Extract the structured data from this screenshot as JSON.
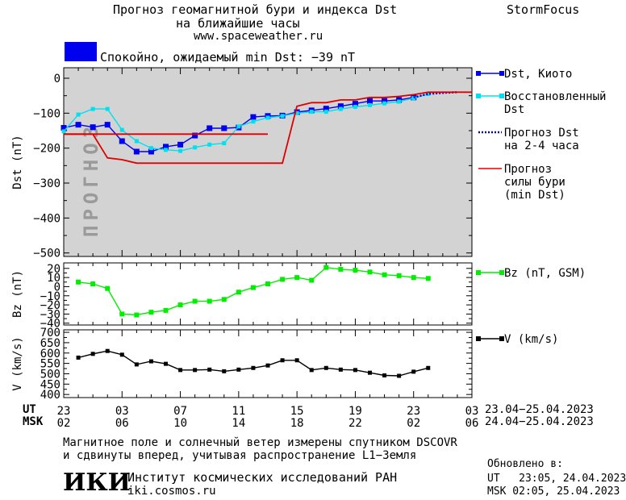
{
  "header": {
    "title_line1": "Прогноз геомагнитной бури и индекса Dst",
    "title_line2": "на ближайшие часы",
    "url": "www.spaceweather.ru",
    "brand": "StormFocus"
  },
  "status": {
    "text": "Спокойно, ожидаемый min Dst: −39 nT",
    "color": "#0000ee"
  },
  "colors": {
    "dst": "#0000ee",
    "restored": "#00e0ee",
    "forecast": "#0000cc",
    "storm": "#dd0000",
    "bz": "#00ee00",
    "v": "#000000",
    "forecast_band": "#d3d3d3"
  },
  "chart_data": [
    {
      "type": "line",
      "panel": "dst",
      "ylabel": "Dst (nT)",
      "ylim": [
        -510,
        30
      ],
      "yticks": [
        0,
        -100,
        -200,
        -300,
        -400,
        -500
      ],
      "ytick_labels": [
        "0",
        "−100",
        "−200",
        "−300",
        "−400",
        "−500"
      ],
      "forecast_label": "ПРОГНОЗ",
      "forecast_start_hour": 23,
      "series": [
        {
          "name": "Dst, Киото",
          "x": [
            23,
            24,
            25,
            26,
            27,
            28,
            29,
            30,
            31,
            32,
            33,
            34,
            35,
            36,
            37,
            38,
            39,
            40,
            41,
            42,
            43,
            44,
            45,
            46,
            47
          ],
          "y": [
            -142,
            -133,
            -140,
            -133,
            -180,
            -210,
            -210,
            -196,
            -190,
            -164,
            -143,
            -143,
            -141,
            -111,
            -108,
            -107,
            -97,
            -92,
            -87,
            -80,
            -73,
            -65,
            -65,
            -62,
            -55
          ]
        },
        {
          "name": "Восстановленный Dst",
          "x": [
            23,
            24,
            25,
            26,
            27,
            28,
            29,
            30,
            31,
            32,
            33,
            34,
            35,
            36,
            37,
            38,
            39,
            40,
            41,
            42,
            43,
            44,
            45,
            46,
            47,
            48
          ],
          "y": [
            -152,
            -104,
            -88,
            -88,
            -148,
            -180,
            -200,
            -205,
            -208,
            -198,
            -190,
            -186,
            -138,
            -124,
            -113,
            -108,
            -100,
            -96,
            -96,
            -88,
            -82,
            -77,
            -72,
            -67,
            -57,
            -45
          ]
        },
        {
          "name": "Прогноз Dst на 2-4 часа",
          "x": [
            47,
            48,
            49,
            50
          ],
          "y": [
            -55,
            -45,
            -42,
            -40
          ]
        },
        {
          "name": "Прогноз силы бури (min Dst)",
          "x": [
            23,
            24,
            25,
            26,
            27,
            28,
            29,
            30,
            31,
            32,
            33,
            34,
            35,
            36,
            37,
            38,
            39,
            40,
            41,
            42,
            43,
            44,
            45,
            46,
            47,
            48,
            49,
            50,
            51
          ],
          "y": [
            -160,
            -160,
            -160,
            -228,
            -233,
            -243,
            -243,
            -243,
            -243,
            -243,
            -243,
            -243,
            -243,
            -243,
            -243,
            -243,
            -80,
            -70,
            -70,
            -62,
            -62,
            -55,
            -55,
            -52,
            -47,
            -40,
            -40,
            -40,
            -40
          ]
        },
        {
          "name": "",
          "x": [
            23,
            37
          ],
          "y": [
            -160,
            -160
          ]
        }
      ]
    },
    {
      "type": "line",
      "panel": "bz",
      "ylabel": "Bz (nT)",
      "ylim": [
        -42,
        26
      ],
      "yticks": [
        20,
        10,
        0,
        -10,
        -20,
        -30,
        -40
      ],
      "ytick_labels": [
        "20",
        "10",
        "0",
        "−10",
        "−20",
        "−30",
        "−40"
      ],
      "series": [
        {
          "name": "Bz (nT, GSM)",
          "x": [
            24,
            25,
            26,
            27,
            28,
            29,
            30,
            31,
            32,
            33,
            34,
            35,
            36,
            37,
            38,
            39,
            40,
            41,
            42,
            43,
            44,
            45,
            46,
            47,
            48
          ],
          "y": [
            5,
            3,
            -2,
            -30,
            -31,
            -28,
            -26,
            -20,
            -16,
            -16,
            -14,
            -6,
            -1,
            3,
            8,
            10,
            7,
            21,
            19,
            18,
            16,
            13,
            12,
            10,
            9
          ]
        }
      ]
    },
    {
      "type": "line",
      "panel": "v",
      "ylabel": "V (km/s)",
      "ylim": [
        385,
        712
      ],
      "yticks": [
        700,
        650,
        600,
        550,
        500,
        450,
        400
      ],
      "ytick_labels": [
        "700",
        "650",
        "600",
        "550",
        "500",
        "450",
        "400"
      ],
      "series": [
        {
          "name": "V (km/s)",
          "x": [
            24,
            25,
            26,
            27,
            28,
            29,
            30,
            31,
            32,
            33,
            34,
            35,
            36,
            37,
            38,
            39,
            40,
            41,
            42,
            43,
            44,
            45,
            46,
            47,
            48
          ],
          "y": [
            578,
            596,
            610,
            592,
            545,
            560,
            548,
            518,
            518,
            520,
            512,
            520,
            528,
            540,
            565,
            565,
            518,
            528,
            520,
            518,
            505,
            492,
            490,
            510,
            528
          ]
        }
      ]
    }
  ],
  "xaxis": {
    "ut_label": "UT",
    "msk_label": "MSK",
    "ut_ticks": [
      "23",
      "03",
      "07",
      "11",
      "15",
      "19",
      "23",
      "03"
    ],
    "msk_ticks": [
      "02",
      "06",
      "10",
      "14",
      "18",
      "22",
      "02",
      "06"
    ],
    "ut_range": "23.04−25.04.2023",
    "msk_range": "24.04−25.04.2023"
  },
  "legend": {
    "dst_line1": "Dst, Киото",
    "restored_line1": "Восстановленный",
    "restored_line2": "Dst",
    "forecast_line1": "Прогноз Dst",
    "forecast_line2": "на 2-4 часа",
    "storm_line1": "Прогноз",
    "storm_line2": "силы бури",
    "storm_line3": "(min Dst)",
    "bz": "Bz (nT, GSM)",
    "v": "V (km/s)"
  },
  "footer": {
    "note_line1": "Магнитное поле и солнечный ветер измерены спутником DSCOVR",
    "note_line2": "и сдвинуты вперед, учитывая распространение L1−Земля",
    "logo": "ИКИ",
    "institute": "Институт космических исследований РАН",
    "site": "iki.cosmos.ru",
    "updated_label": "Обновлено в:",
    "updated_ut": "UT   23:05, 24.04.2023",
    "updated_msk": "MSK 02:05, 25.04.2023"
  }
}
